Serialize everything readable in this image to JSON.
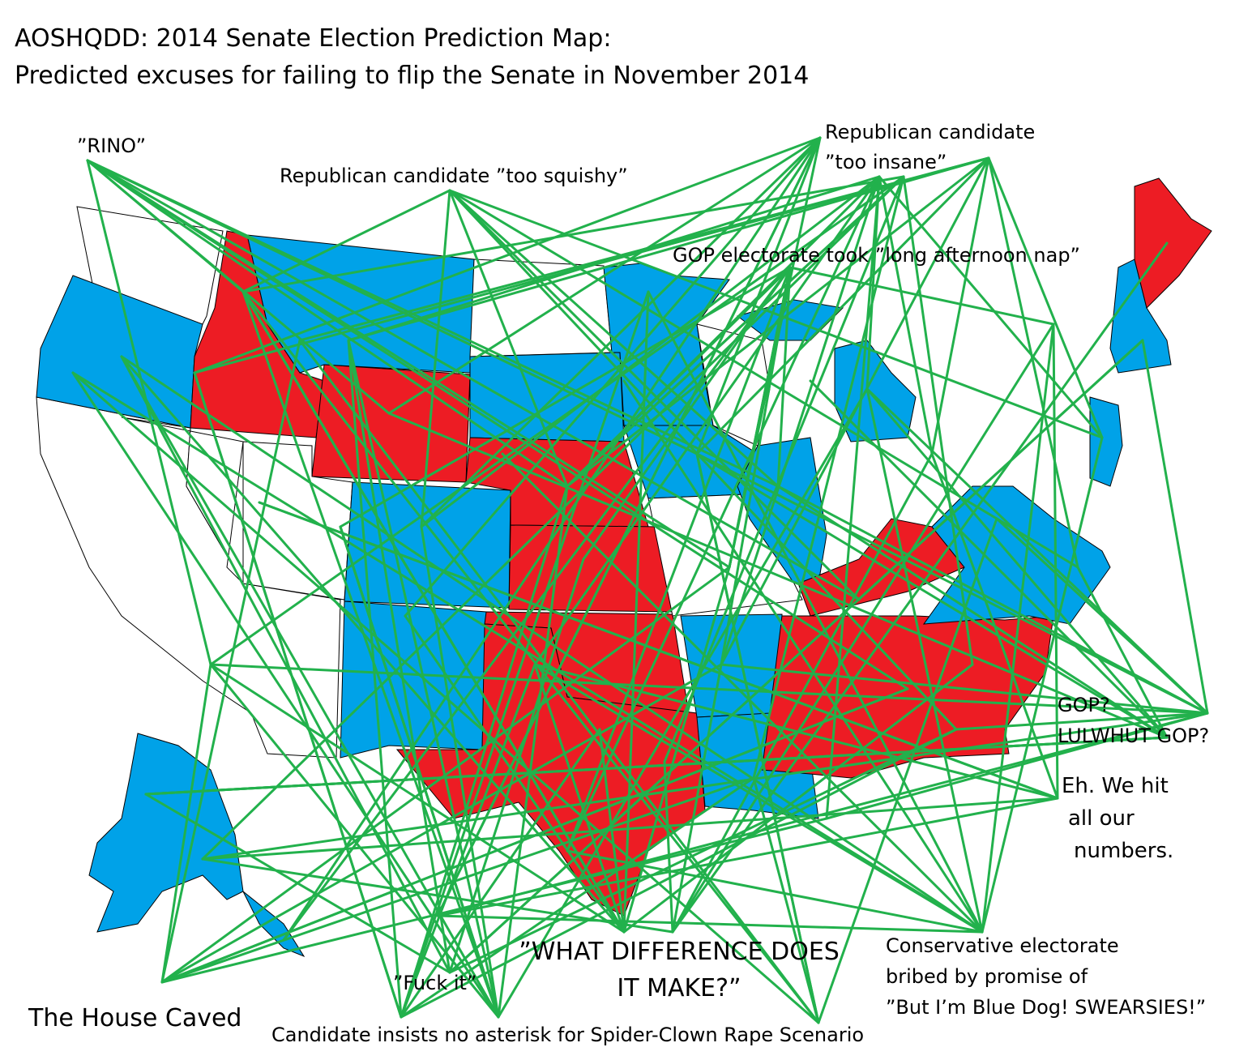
{
  "title": {
    "line1": "AOSHQDD: 2014 Senate Election Prediction Map:",
    "line2": "Predicted excuses for failing to flip the Senate in November 2014"
  },
  "colors": {
    "republican_hold": "#ed1c24",
    "democrat_hold": "#00a2e8",
    "connector_lines": "#22b14c",
    "no_race": "#ffffff",
    "borders": "#000000"
  },
  "labels": {
    "rino": "”RINO”",
    "too_squishy": "Republican candidate ”too squishy”",
    "too_insane_1": "Republican candidate",
    "too_insane_2": "”too insane”",
    "nap": "GOP electorate took ”long afternoon nap”",
    "gop_1": "GOP?",
    "gop_2": "LULWHUT GOP?",
    "numbers_1": "Eh. We hit",
    "numbers_2": "all our",
    "numbers_3": "numbers.",
    "conservative_1": "Conservative electorate",
    "conservative_2": "bribed by promise of",
    "conservative_3": "”But I’m Blue Dog! SWEARSIES!”",
    "what_diff_1": "”WHAT DIFFERENCE DOES",
    "what_diff_2": "IT MAKE?”",
    "fuck_it": "”Fuck it”",
    "house_caved": "The House Caved",
    "spider_clown": "Candidate insists no asterisk for Spider-Clown Rape Scenario"
  }
}
